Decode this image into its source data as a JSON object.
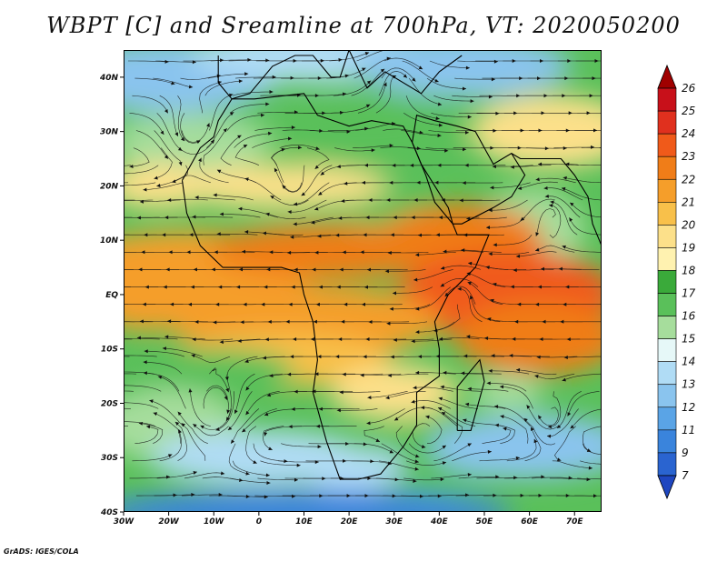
{
  "title": "WBPT [C] and Sreamline at 700hPa, VT: 2020050200",
  "footer": "GrADS: IGES/COLA",
  "map": {
    "lat_labels": [
      "40N",
      "30N",
      "20N",
      "10N",
      "EQ",
      "10S",
      "20S",
      "30S",
      "40S"
    ],
    "lon_labels": [
      "30W",
      "20W",
      "10W",
      "0",
      "10E",
      "20E",
      "30E",
      "40E",
      "50E",
      "60E",
      "70E"
    ],
    "lat_range": [
      -40,
      45
    ],
    "lon_range": [
      -30,
      76
    ]
  },
  "colorbar": {
    "levels": [
      "26",
      "25",
      "24",
      "23",
      "22",
      "21",
      "20",
      "19",
      "18",
      "17",
      "16",
      "15",
      "14",
      "13",
      "12",
      "11",
      "9",
      "7"
    ],
    "colors": [
      "#a00000",
      "#c8101a",
      "#e0301e",
      "#f05a1a",
      "#f07d18",
      "#f59e2a",
      "#f8c04a",
      "#fce08a",
      "#fff2b0",
      "#3aaa3a",
      "#5ac05a",
      "#a6dd9c",
      "#e6f8f8",
      "#b0dcf5",
      "#8ac4ee",
      "#5aa4e6",
      "#3a84dc",
      "#2a64d0",
      "#1e46c0"
    ]
  }
}
